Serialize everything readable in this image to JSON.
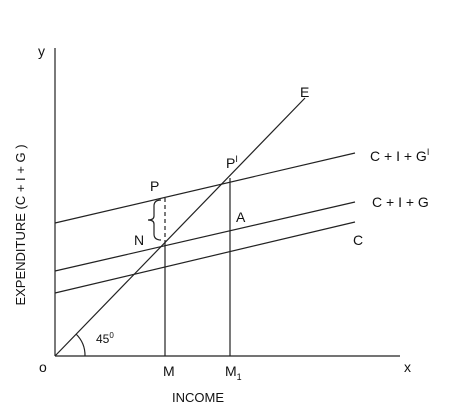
{
  "axes": {
    "y_symbol": "y",
    "x_symbol": "x",
    "origin": "o",
    "y_label": "EXPENDITURE (C + I + G )",
    "x_label": "INCOME"
  },
  "lines": {
    "e": "E",
    "c": "C",
    "cig": "C + I + G",
    "cig_prime": {
      "text": "C + I + G",
      "sup": "I"
    }
  },
  "points": {
    "p_prime": {
      "text": "P",
      "sup": "I"
    },
    "p": "P",
    "n": "N",
    "a": "A"
  },
  "angle": {
    "text": "45",
    "sup": "0"
  },
  "ticks": {
    "m": "M",
    "m1": {
      "text": "M",
      "sub": "1"
    }
  }
}
